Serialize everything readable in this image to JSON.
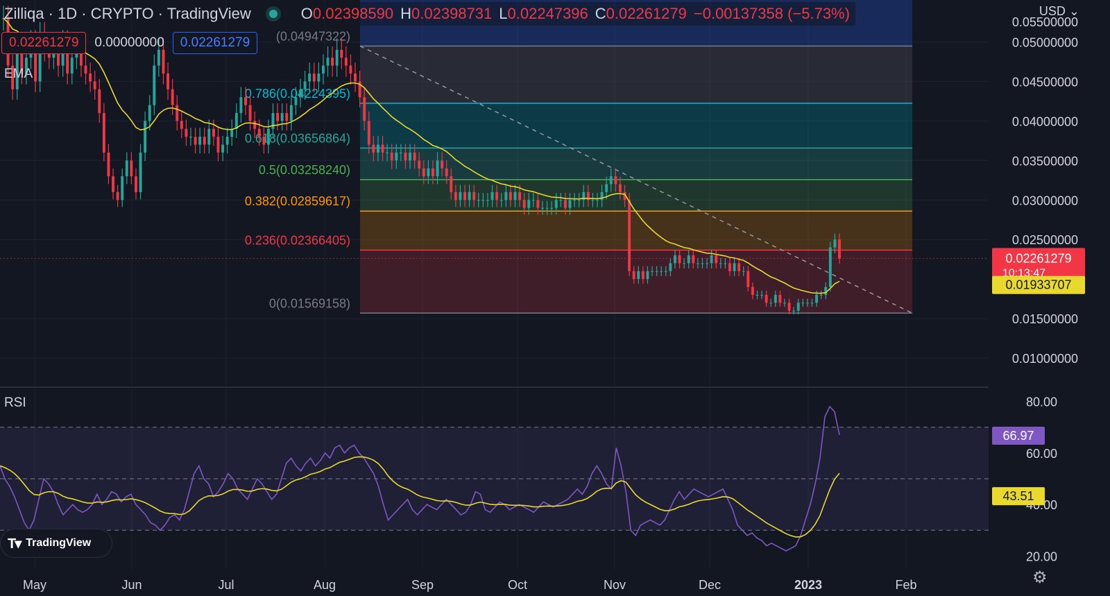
{
  "header": {
    "symbol": "Zilliqa · 1D · CRYPTO · TradingView",
    "open_label": "O",
    "open_value": "0.02398590",
    "high_label": "H",
    "high_value": "0.02398731",
    "low_label": "L",
    "low_value": "0.02247396",
    "close_label": "C",
    "close_value": "0.02261279",
    "change": "−0.00137358 (−5.73%)",
    "currency": "USD"
  },
  "order_boxes": {
    "sell": "0.02261279",
    "spread": "0.00000000",
    "buy": "0.02261279"
  },
  "indicators": {
    "ema_label": "EMA",
    "rsi_label": "RSI"
  },
  "branding": {
    "logo_text": "TradingView"
  },
  "colors": {
    "up": "#26a69a",
    "down": "#f23645",
    "ema": "#e8d92c",
    "rsi": "#7e57c2",
    "background": "#131722"
  },
  "chart_data": {
    "type": "candlestick",
    "title": "",
    "xlabel": "",
    "ylabel": "",
    "ylim": [
      0.0065,
      0.0553
    ],
    "y_ticks": [
      "0.05000000",
      "0.04500000",
      "0.04000000",
      "0.03500000",
      "0.03000000",
      "0.02500000",
      "0.01500000",
      "0.01000000"
    ],
    "y_tick_values": [
      0.05,
      0.045,
      0.04,
      0.035,
      0.03,
      0.025,
      0.015,
      0.01
    ],
    "y_top_partial": "0.05500000",
    "x_ticks": [
      "May",
      "Jun",
      "Jul",
      "Aug",
      "Sep",
      "Oct",
      "Nov",
      "Dec",
      "2023",
      "Feb"
    ],
    "close_approx": [
      0.053,
      0.047,
      0.044,
      0.049,
      0.046,
      0.048,
      0.05,
      0.045,
      0.051,
      0.049,
      0.048,
      0.049,
      0.047,
      0.05,
      0.046,
      0.048,
      0.049,
      0.047,
      0.046,
      0.045,
      0.044,
      0.041,
      0.036,
      0.033,
      0.031,
      0.03,
      0.033,
      0.035,
      0.033,
      0.031,
      0.036,
      0.04,
      0.042,
      0.047,
      0.049,
      0.046,
      0.044,
      0.042,
      0.04,
      0.039,
      0.038,
      0.038,
      0.037,
      0.038,
      0.037,
      0.039,
      0.038,
      0.036,
      0.037,
      0.038,
      0.039,
      0.041,
      0.043,
      0.042,
      0.04,
      0.039,
      0.038,
      0.037,
      0.039,
      0.041,
      0.04,
      0.041,
      0.04,
      0.042,
      0.043,
      0.044,
      0.045,
      0.046,
      0.045,
      0.046,
      0.047,
      0.048,
      0.047,
      0.049,
      0.048,
      0.047,
      0.046,
      0.045,
      0.043,
      0.04,
      0.037,
      0.036,
      0.037,
      0.036,
      0.036,
      0.035,
      0.036,
      0.036,
      0.035,
      0.036,
      0.035,
      0.034,
      0.033,
      0.034,
      0.033,
      0.035,
      0.034,
      0.033,
      0.031,
      0.03,
      0.031,
      0.03,
      0.031,
      0.03,
      0.03,
      0.03,
      0.03,
      0.031,
      0.03,
      0.03,
      0.031,
      0.03,
      0.031,
      0.03,
      0.029,
      0.03,
      0.03,
      0.029,
      0.029,
      0.029,
      0.029,
      0.03,
      0.03,
      0.029,
      0.03,
      0.03,
      0.03,
      0.031,
      0.03,
      0.03,
      0.03,
      0.031,
      0.032,
      0.033,
      0.032,
      0.031,
      0.03,
      0.021,
      0.02,
      0.021,
      0.02,
      0.021,
      0.021,
      0.021,
      0.021,
      0.021,
      0.022,
      0.023,
      0.022,
      0.022,
      0.023,
      0.022,
      0.022,
      0.022,
      0.022,
      0.023,
      0.022,
      0.022,
      0.022,
      0.021,
      0.022,
      0.021,
      0.021,
      0.019,
      0.018,
      0.018,
      0.018,
      0.017,
      0.017,
      0.018,
      0.017,
      0.017,
      0.016,
      0.016,
      0.017,
      0.017,
      0.017,
      0.017,
      0.018,
      0.018,
      0.019,
      0.024,
      0.025,
      0.0226
    ],
    "ema_last": 0.01933707,
    "last_price": 0.02261279,
    "last_price_label": "0.02261279",
    "countdown": "10:13:47",
    "ema_last_label": "0.01933707",
    "fibonacci": [
      {
        "level": "1",
        "value": 0.04947322,
        "label": "(0.04947322)",
        "color": "#787b86"
      },
      {
        "level": "0.786",
        "value": 0.04224395,
        "label": "0.786(0.04224395)",
        "color": "#00bcd4"
      },
      {
        "level": "0.618",
        "value": 0.03656864,
        "label": "0.618(0.03656864)",
        "color": "#26a69a"
      },
      {
        "level": "0.5",
        "value": 0.0325824,
        "label": "0.5(0.03258240)",
        "color": "#4caf50"
      },
      {
        "level": "0.382",
        "value": 0.02859617,
        "label": "0.382(0.02859617)",
        "color": "#ff9800"
      },
      {
        "level": "0.236",
        "value": 0.02366405,
        "label": "0.236(0.02366405)",
        "color": "#f23645"
      },
      {
        "level": "0",
        "value": 0.01569158,
        "label": "0(0.01569158)",
        "color": "#787b86"
      }
    ],
    "rsi": {
      "ylim": [
        15,
        85
      ],
      "y_ticks": [
        "80.00",
        "60.00",
        "40.00",
        "20.00"
      ],
      "y_tick_values": [
        80,
        60,
        40,
        20
      ],
      "bands": [
        70,
        50,
        30
      ],
      "last_rsi": 66.97,
      "last_rsi_label": "66.97",
      "last_ma": 43.51,
      "last_ma_label": "43.51",
      "values_approx": [
        55,
        50,
        47,
        43,
        38,
        33,
        30,
        34,
        42,
        50,
        48,
        45,
        40,
        36,
        38,
        40,
        38,
        37,
        38,
        40,
        44,
        40,
        42,
        45,
        44,
        41,
        43,
        44,
        40,
        38,
        36,
        33,
        32,
        30,
        32,
        35,
        36,
        34,
        38,
        45,
        52,
        55,
        50,
        48,
        43,
        45,
        48,
        52,
        50,
        46,
        44,
        42,
        46,
        50,
        48,
        45,
        42,
        44,
        50,
        56,
        58,
        55,
        53,
        56,
        58,
        55,
        57,
        60,
        58,
        62,
        63,
        60,
        62,
        63,
        60,
        58,
        55,
        52,
        47,
        40,
        34,
        36,
        38,
        40,
        42,
        38,
        36,
        38,
        40,
        39,
        38,
        40,
        42,
        40,
        38,
        36,
        37,
        40,
        45,
        44,
        38,
        37,
        39,
        41,
        40,
        38,
        39,
        40,
        39,
        38,
        37,
        39,
        41,
        40,
        39,
        40,
        41,
        42,
        44,
        46,
        44,
        47,
        52,
        55,
        52,
        48,
        46,
        62,
        55,
        45,
        30,
        28,
        32,
        33,
        34,
        33,
        32,
        34,
        38,
        42,
        45,
        42,
        44,
        46,
        45,
        44,
        43,
        44,
        45,
        46,
        42,
        38,
        32,
        30,
        28,
        29,
        27,
        26,
        24,
        25,
        24,
        23,
        22,
        23,
        24,
        28,
        34,
        40,
        48,
        58,
        74,
        78,
        76,
        67
      ]
    }
  }
}
